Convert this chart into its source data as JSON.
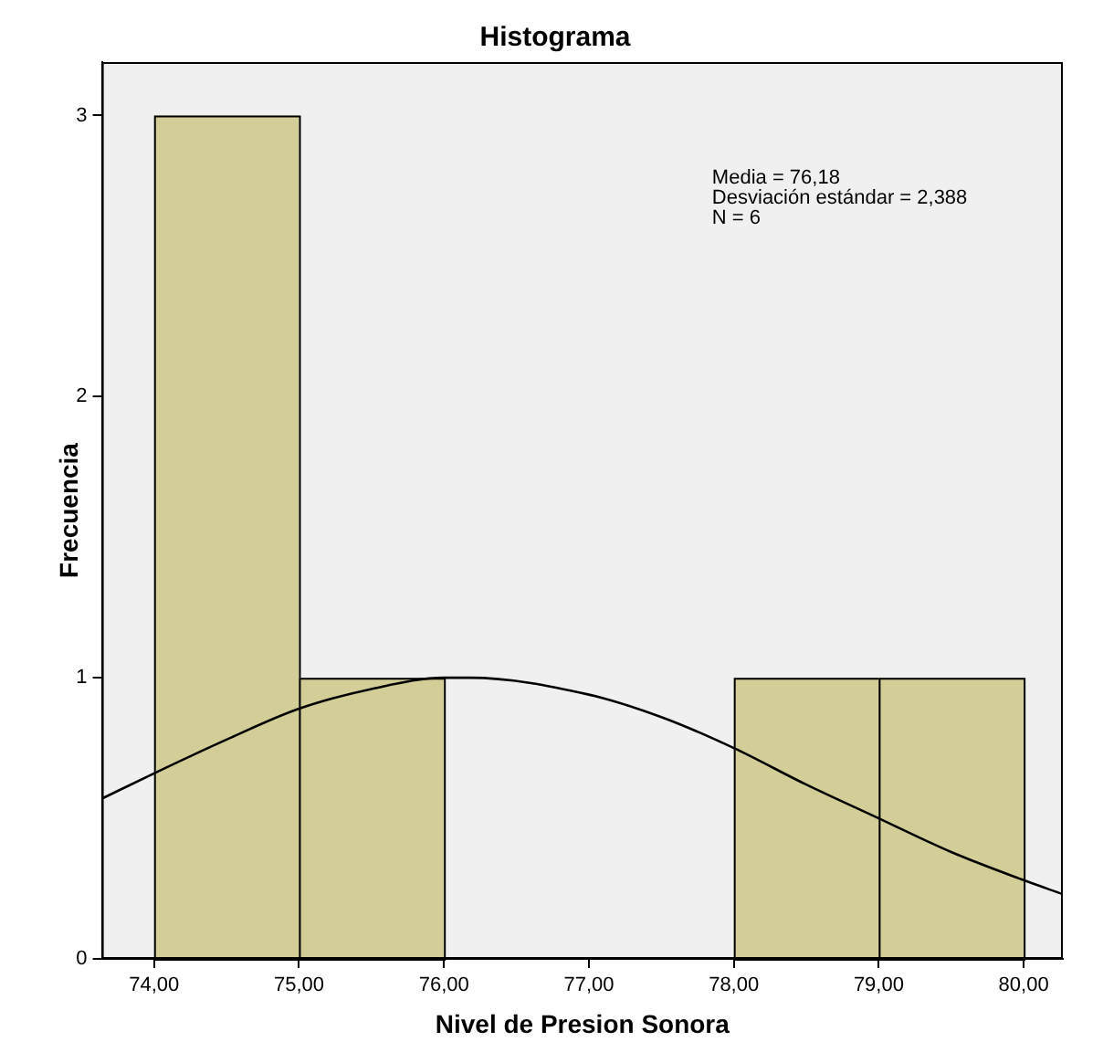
{
  "chart_data": {
    "type": "histogram",
    "title": "Histograma",
    "xlabel": "Nivel de Presion Sonora",
    "ylabel": "Frecuencia",
    "bins": [
      74,
      75,
      76,
      77,
      78,
      79,
      80
    ],
    "values": [
      3,
      1,
      0,
      0,
      1,
      1
    ],
    "color": "#d3ce98",
    "series": [
      {
        "type": "line",
        "color": "#000000",
        "x": [
          73.64,
          74,
          74.5,
          75,
          75.5,
          76,
          76.18,
          77,
          77.5,
          78,
          78.5,
          79,
          79.5,
          80,
          80.27
        ],
        "values": [
          0.57,
          0.66,
          0.78,
          0.89,
          0.96,
          1.0,
          1.0,
          0.94,
          0.86,
          0.75,
          0.62,
          0.5,
          0.38,
          0.28,
          0.23
        ]
      }
    ],
    "xlim": [
      73.64,
      80.27
    ],
    "xticks": [
      {
        "value": 74,
        "label": "74,00"
      },
      {
        "value": 75,
        "label": "75,00"
      },
      {
        "value": 76,
        "label": "76,00"
      },
      {
        "value": 77,
        "label": "77,00"
      },
      {
        "value": 78,
        "label": "78,00"
      },
      {
        "value": 79,
        "label": "79,00"
      },
      {
        "value": 80,
        "label": "80,00"
      }
    ],
    "ylim": [
      0,
      3.19
    ],
    "yticks": [
      0,
      1,
      2,
      3
    ],
    "grid": false,
    "legend": false,
    "marker": "none",
    "annotations": [
      "Media = 76,18",
      "Desviación estándar = 2,388",
      "N = 6"
    ]
  }
}
